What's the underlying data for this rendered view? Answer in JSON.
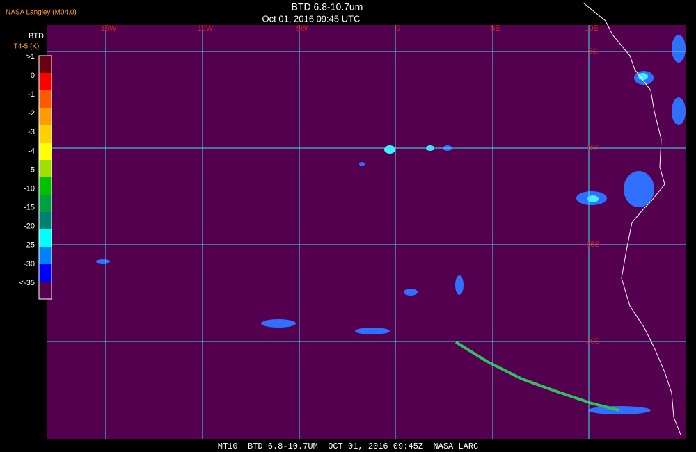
{
  "header": {
    "title": "BTD 6.8-10.7um",
    "subtitle": "Oct 01, 2016 09:45 UTC",
    "source": "NASA Langley (M04.0)"
  },
  "legend": {
    "title": "BTD",
    "unit": "T4-5 (K)",
    "labels": [
      ">1",
      "0",
      "-1",
      "-2",
      "-3",
      "-4",
      "-5",
      "-10",
      "-15",
      "-20",
      "-25",
      "-30",
      "<-35"
    ],
    "colors": [
      "#6a0010",
      "#ff0000",
      "#ff5a00",
      "#ff9a00",
      "#ffd000",
      "#ffff00",
      "#a0e000",
      "#00c000",
      "#00a040",
      "#008070",
      "#00ffff",
      "#0080ff",
      "#0000ff",
      "#55004f"
    ]
  },
  "map": {
    "lon_labels": [
      "15W",
      "10W",
      "5W",
      "0",
      "5E",
      "10E"
    ],
    "lat_labels": [
      "5S",
      "10S",
      "15S",
      "20S"
    ]
  },
  "footer": {
    "text": "MT10  BTD 6.8-10.7UM  OCT 01, 2016 09:45Z  NASA LARC"
  }
}
